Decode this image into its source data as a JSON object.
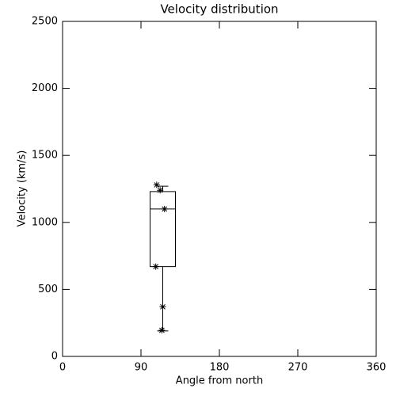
{
  "chart_data": {
    "type": "box",
    "title": "Velocity distribution",
    "x_label": "Angle from north",
    "y_label": "Velocity (km/s)",
    "xlim": [
      0,
      360
    ],
    "ylim": [
      0,
      2500
    ],
    "xticks": [
      0,
      90,
      180,
      270,
      360
    ],
    "yticks": [
      0,
      500,
      1000,
      1500,
      2000,
      2500
    ],
    "color": "#000000",
    "box": {
      "x": 115,
      "min": 190,
      "q1": 670,
      "median": 1100,
      "q3": 1230,
      "max": 1270
    },
    "points": {
      "x": [
        108,
        112,
        117,
        107,
        115,
        114
      ],
      "y": [
        1280,
        1240,
        1100,
        670,
        370,
        195
      ]
    }
  }
}
